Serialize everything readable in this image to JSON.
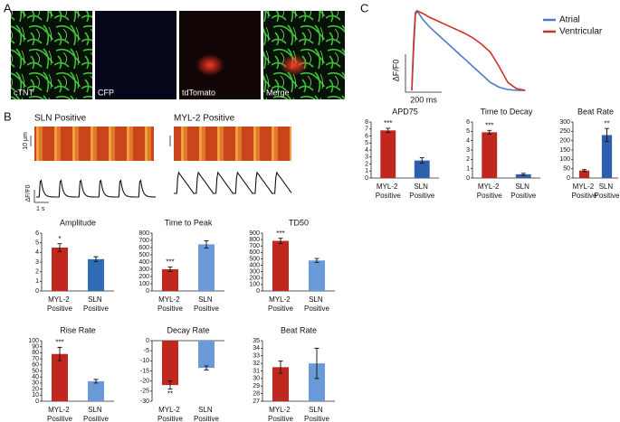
{
  "panels": {
    "A": {
      "label": "A",
      "images": [
        "cTNT",
        "CFP",
        "tdTomato",
        "Merge"
      ]
    },
    "B": {
      "label": "B",
      "groups": [
        "SLN Positive",
        "MYL-2 Positive"
      ],
      "scale_length": "10 μm",
      "trace_axis": "ΔF/F0",
      "time_scale": "1 s"
    },
    "C": {
      "label": "C",
      "trace_axis": "ΔF/F0",
      "time_scale": "200 ms"
    }
  },
  "chart_data": [
    {
      "type": "line",
      "x": [
        0,
        10,
        20,
        30,
        60,
        100,
        150,
        200,
        250,
        300,
        350,
        400,
        450,
        500,
        550,
        600,
        650
      ],
      "xlim": [
        0,
        700
      ],
      "ylim": [
        0,
        1
      ],
      "series": [
        {
          "name": "Atrial",
          "color": "#4f79c9",
          "values": [
            0,
            0.6,
            0.98,
            1,
            0.9,
            0.8,
            0.7,
            0.6,
            0.5,
            0.4,
            0.3,
            0.2,
            0.1,
            0.04,
            0.01,
            0,
            0
          ]
        },
        {
          "name": "Ventricular",
          "color": "#d0302a",
          "values": [
            0,
            0.5,
            0.95,
            1,
            0.97,
            0.92,
            0.87,
            0.82,
            0.77,
            0.72,
            0.66,
            0.58,
            0.48,
            0.3,
            0.1,
            0.02,
            0
          ]
        }
      ]
    },
    {
      "type": "bar",
      "title": "Amplitude",
      "categories": [
        "MYL-2 Positive",
        "SLN Positive"
      ],
      "values": [
        4.5,
        3.3
      ],
      "errors": [
        0.4,
        0.25
      ],
      "colors": [
        "#c0281f",
        "#2e6db5"
      ],
      "annotations": [
        "*",
        null
      ],
      "ylim": [
        0,
        6
      ],
      "yticks": [
        0,
        1,
        2,
        3,
        4,
        5,
        6
      ]
    },
    {
      "type": "bar",
      "title": "Time to Peak",
      "categories": [
        "MYL-2 Positive",
        "SLN Positive"
      ],
      "values": [
        300,
        645
      ],
      "errors": [
        30,
        50
      ],
      "colors": [
        "#c0281f",
        "#6a9bd8"
      ],
      "annotations": [
        "***",
        null
      ],
      "ylim": [
        0,
        800
      ],
      "yticks": [
        0,
        100,
        200,
        300,
        400,
        500,
        600,
        700,
        800
      ]
    },
    {
      "type": "bar",
      "title": "TD50",
      "categories": [
        "MYL-2 Positive",
        "SLN Positive"
      ],
      "values": [
        780,
        475
      ],
      "errors": [
        40,
        30
      ],
      "colors": [
        "#c0281f",
        "#6a9bd8"
      ],
      "annotations": [
        "***",
        null
      ],
      "ylim": [
        0,
        900
      ],
      "yticks": [
        0,
        100,
        200,
        300,
        400,
        500,
        600,
        700,
        800,
        900
      ]
    },
    {
      "type": "bar",
      "title": "Rise Rate",
      "categories": [
        "MYL-2 Positive",
        "SLN Positive"
      ],
      "values": [
        78,
        33
      ],
      "errors": [
        11,
        3
      ],
      "colors": [
        "#c0281f",
        "#6a9bd8"
      ],
      "annotations": [
        "***",
        null
      ],
      "ylim": [
        0,
        100
      ],
      "yticks": [
        0,
        10,
        20,
        30,
        40,
        50,
        60,
        70,
        80,
        90,
        100
      ]
    },
    {
      "type": "bar",
      "title": "Decay Rate",
      "categories": [
        "MYL-2 Positive",
        "SLN Positive"
      ],
      "values": [
        -22,
        -13.5
      ],
      "errors": [
        2,
        1
      ],
      "colors": [
        "#c0281f",
        "#6a9bd8"
      ],
      "annotations": [
        "**",
        null
      ],
      "ylim": [
        -30,
        0
      ],
      "yticks": [
        -30,
        -25,
        -20,
        -15,
        -10,
        -5,
        0
      ]
    },
    {
      "type": "bar",
      "title": "Beat Rate",
      "categories": [
        "MYL-2 Positive",
        "SLN Positive"
      ],
      "values": [
        31.5,
        32
      ],
      "errors": [
        0.8,
        2
      ],
      "colors": [
        "#c0281f",
        "#6a9bd8"
      ],
      "annotations": [
        null,
        null
      ],
      "ylim": [
        27,
        35
      ],
      "yticks": [
        27,
        28,
        29,
        30,
        31,
        32,
        33,
        34,
        35
      ]
    },
    {
      "type": "bar",
      "title": "APD75",
      "categories": [
        "MYL-2 Positive",
        "SLN Positive"
      ],
      "values": [
        6.8,
        2.5
      ],
      "errors": [
        0.3,
        0.4
      ],
      "colors": [
        "#c0281f",
        "#2e5fae"
      ],
      "annotations": [
        "***",
        null
      ],
      "ylim": [
        0,
        8
      ],
      "yticks": [
        0,
        1,
        2,
        3,
        4,
        5,
        6,
        7,
        8
      ]
    },
    {
      "type": "bar",
      "title": "Time to Decay",
      "categories": [
        "MYL-2 Positive",
        "SLN Positive"
      ],
      "values": [
        4.9,
        0.4
      ],
      "errors": [
        0.2,
        0.1
      ],
      "colors": [
        "#c0281f",
        "#2e5fae"
      ],
      "annotations": [
        "***",
        null
      ],
      "ylim": [
        0,
        6
      ],
      "yticks": [
        0,
        1,
        2,
        3,
        4,
        5,
        6
      ]
    },
    {
      "type": "bar",
      "title": "Beat Rate",
      "categories": [
        "MYL-2 Positive",
        "SLN Positive"
      ],
      "values": [
        40,
        230
      ],
      "errors": [
        5,
        35
      ],
      "colors": [
        "#c0281f",
        "#2e5fae"
      ],
      "annotations": [
        null,
        "**"
      ],
      "ylim": [
        0,
        300
      ],
      "yticks": [
        0,
        50,
        100,
        150,
        200,
        250,
        300
      ]
    }
  ]
}
